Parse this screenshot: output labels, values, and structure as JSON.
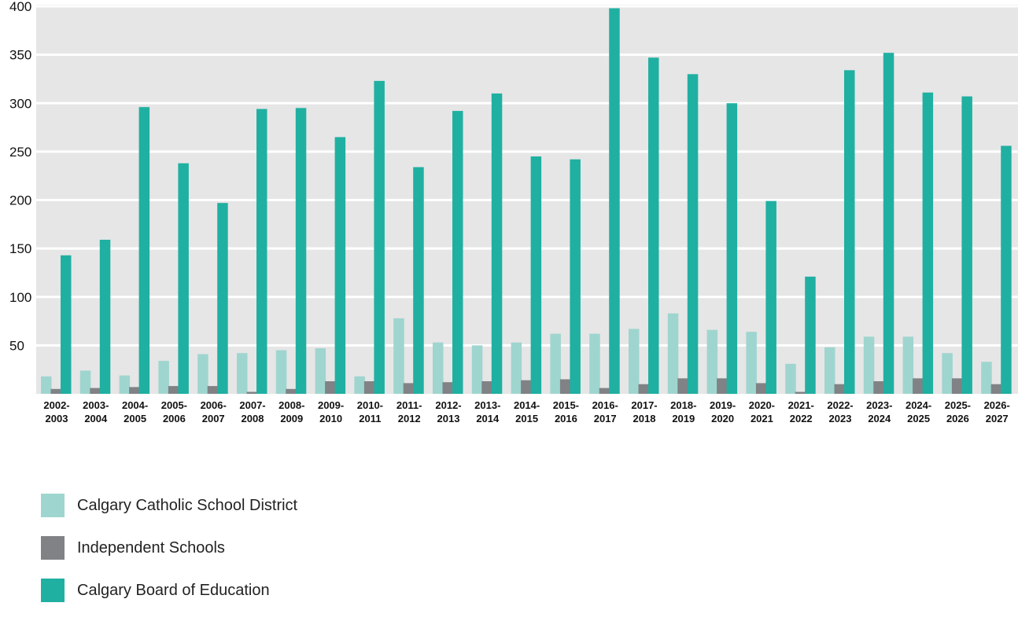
{
  "chart_data": {
    "type": "bar",
    "title": "",
    "xlabel": "",
    "ylabel": "",
    "ylim": [
      0,
      400
    ],
    "yticks": [
      50,
      100,
      150,
      200,
      250,
      300,
      350,
      400
    ],
    "grid": true,
    "legend_position": "bottom-left",
    "categories": [
      [
        "2002-",
        "2003"
      ],
      [
        "2003-",
        "2004"
      ],
      [
        "2004-",
        "2005"
      ],
      [
        "2005-",
        "2006"
      ],
      [
        "2006-",
        "2007"
      ],
      [
        "2007-",
        "2008"
      ],
      [
        "2008-",
        "2009"
      ],
      [
        "2009-",
        "2010"
      ],
      [
        "2010-",
        "2011"
      ],
      [
        "2011-",
        "2012"
      ],
      [
        "2012-",
        "2013"
      ],
      [
        "2013-",
        "2014"
      ],
      [
        "2014-",
        "2015"
      ],
      [
        "2015-",
        "2016"
      ],
      [
        "2016-",
        "2017"
      ],
      [
        "2017-",
        "2018"
      ],
      [
        "2018-",
        "2019"
      ],
      [
        "2019-",
        "2020"
      ],
      [
        "2020-",
        "2021"
      ],
      [
        "2021-",
        "2022"
      ],
      [
        "2022-",
        "2023"
      ],
      [
        "2023-",
        "2024"
      ],
      [
        "2024-",
        "2025"
      ],
      [
        "2025-",
        "2026"
      ],
      [
        "2026-",
        "2027"
      ]
    ],
    "series": [
      {
        "name": "Calgary Catholic School District",
        "color": "#9fd5cf",
        "values": [
          18,
          24,
          19,
          34,
          41,
          42,
          45,
          47,
          18,
          78,
          53,
          50,
          53,
          62,
          62,
          67,
          83,
          66,
          64,
          31,
          48,
          59,
          59,
          42,
          33
        ]
      },
      {
        "name": "Independent Schools",
        "color": "#808285",
        "values": [
          5,
          6,
          7,
          8,
          8,
          2,
          5,
          13,
          13,
          11,
          12,
          13,
          14,
          15,
          6,
          10,
          16,
          16,
          11,
          2,
          10,
          13,
          16,
          16,
          10
        ]
      },
      {
        "name": "Calgary Board of Education",
        "color": "#20b0a2",
        "values": [
          143,
          159,
          296,
          238,
          197,
          294,
          295,
          265,
          323,
          234,
          292,
          310,
          245,
          242,
          398,
          347,
          330,
          300,
          199,
          121,
          334,
          352,
          311,
          307,
          256
        ]
      }
    ]
  }
}
